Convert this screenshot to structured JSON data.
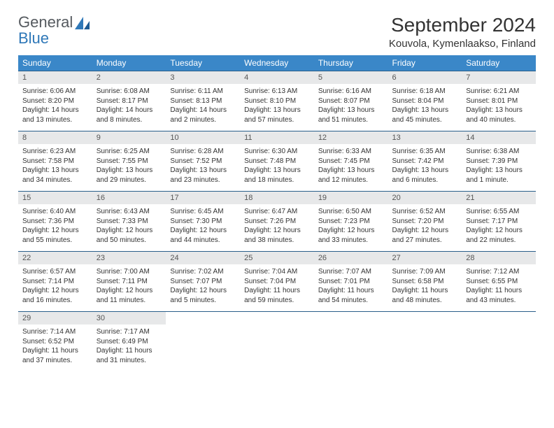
{
  "logo": {
    "line1": "General",
    "line2": "Blue",
    "accent_color": "#2f78b8",
    "text_color": "#555a5f"
  },
  "title": "September 2024",
  "location": "Kouvola, Kymenlaakso, Finland",
  "colors": {
    "header_bg": "#3a87c8",
    "header_text": "#ffffff",
    "daynum_bg": "#e7e8e9",
    "row_border": "#2a5f8a",
    "body_text": "#333333"
  },
  "typography": {
    "title_fontsize": 28,
    "location_fontsize": 15,
    "dayhead_fontsize": 12,
    "daybody_fontsize": 10
  },
  "day_headers": [
    "Sunday",
    "Monday",
    "Tuesday",
    "Wednesday",
    "Thursday",
    "Friday",
    "Saturday"
  ],
  "labels": {
    "sunrise": "Sunrise:",
    "sunset": "Sunset:",
    "daylight": "Daylight:"
  },
  "grid": {
    "rows": 5,
    "cols": 7
  },
  "days": [
    {
      "num": "1",
      "sunrise": "6:06 AM",
      "sunset": "8:20 PM",
      "daylight": "14 hours and 13 minutes."
    },
    {
      "num": "2",
      "sunrise": "6:08 AM",
      "sunset": "8:17 PM",
      "daylight": "14 hours and 8 minutes."
    },
    {
      "num": "3",
      "sunrise": "6:11 AM",
      "sunset": "8:13 PM",
      "daylight": "14 hours and 2 minutes."
    },
    {
      "num": "4",
      "sunrise": "6:13 AM",
      "sunset": "8:10 PM",
      "daylight": "13 hours and 57 minutes."
    },
    {
      "num": "5",
      "sunrise": "6:16 AM",
      "sunset": "8:07 PM",
      "daylight": "13 hours and 51 minutes."
    },
    {
      "num": "6",
      "sunrise": "6:18 AM",
      "sunset": "8:04 PM",
      "daylight": "13 hours and 45 minutes."
    },
    {
      "num": "7",
      "sunrise": "6:21 AM",
      "sunset": "8:01 PM",
      "daylight": "13 hours and 40 minutes."
    },
    {
      "num": "8",
      "sunrise": "6:23 AM",
      "sunset": "7:58 PM",
      "daylight": "13 hours and 34 minutes."
    },
    {
      "num": "9",
      "sunrise": "6:25 AM",
      "sunset": "7:55 PM",
      "daylight": "13 hours and 29 minutes."
    },
    {
      "num": "10",
      "sunrise": "6:28 AM",
      "sunset": "7:52 PM",
      "daylight": "13 hours and 23 minutes."
    },
    {
      "num": "11",
      "sunrise": "6:30 AM",
      "sunset": "7:48 PM",
      "daylight": "13 hours and 18 minutes."
    },
    {
      "num": "12",
      "sunrise": "6:33 AM",
      "sunset": "7:45 PM",
      "daylight": "13 hours and 12 minutes."
    },
    {
      "num": "13",
      "sunrise": "6:35 AM",
      "sunset": "7:42 PM",
      "daylight": "13 hours and 6 minutes."
    },
    {
      "num": "14",
      "sunrise": "6:38 AM",
      "sunset": "7:39 PM",
      "daylight": "13 hours and 1 minute."
    },
    {
      "num": "15",
      "sunrise": "6:40 AM",
      "sunset": "7:36 PM",
      "daylight": "12 hours and 55 minutes."
    },
    {
      "num": "16",
      "sunrise": "6:43 AM",
      "sunset": "7:33 PM",
      "daylight": "12 hours and 50 minutes."
    },
    {
      "num": "17",
      "sunrise": "6:45 AM",
      "sunset": "7:30 PM",
      "daylight": "12 hours and 44 minutes."
    },
    {
      "num": "18",
      "sunrise": "6:47 AM",
      "sunset": "7:26 PM",
      "daylight": "12 hours and 38 minutes."
    },
    {
      "num": "19",
      "sunrise": "6:50 AM",
      "sunset": "7:23 PM",
      "daylight": "12 hours and 33 minutes."
    },
    {
      "num": "20",
      "sunrise": "6:52 AM",
      "sunset": "7:20 PM",
      "daylight": "12 hours and 27 minutes."
    },
    {
      "num": "21",
      "sunrise": "6:55 AM",
      "sunset": "7:17 PM",
      "daylight": "12 hours and 22 minutes."
    },
    {
      "num": "22",
      "sunrise": "6:57 AM",
      "sunset": "7:14 PM",
      "daylight": "12 hours and 16 minutes."
    },
    {
      "num": "23",
      "sunrise": "7:00 AM",
      "sunset": "7:11 PM",
      "daylight": "12 hours and 11 minutes."
    },
    {
      "num": "24",
      "sunrise": "7:02 AM",
      "sunset": "7:07 PM",
      "daylight": "12 hours and 5 minutes."
    },
    {
      "num": "25",
      "sunrise": "7:04 AM",
      "sunset": "7:04 PM",
      "daylight": "11 hours and 59 minutes."
    },
    {
      "num": "26",
      "sunrise": "7:07 AM",
      "sunset": "7:01 PM",
      "daylight": "11 hours and 54 minutes."
    },
    {
      "num": "27",
      "sunrise": "7:09 AM",
      "sunset": "6:58 PM",
      "daylight": "11 hours and 48 minutes."
    },
    {
      "num": "28",
      "sunrise": "7:12 AM",
      "sunset": "6:55 PM",
      "daylight": "11 hours and 43 minutes."
    },
    {
      "num": "29",
      "sunrise": "7:14 AM",
      "sunset": "6:52 PM",
      "daylight": "11 hours and 37 minutes."
    },
    {
      "num": "30",
      "sunrise": "7:17 AM",
      "sunset": "6:49 PM",
      "daylight": "11 hours and 31 minutes."
    }
  ]
}
